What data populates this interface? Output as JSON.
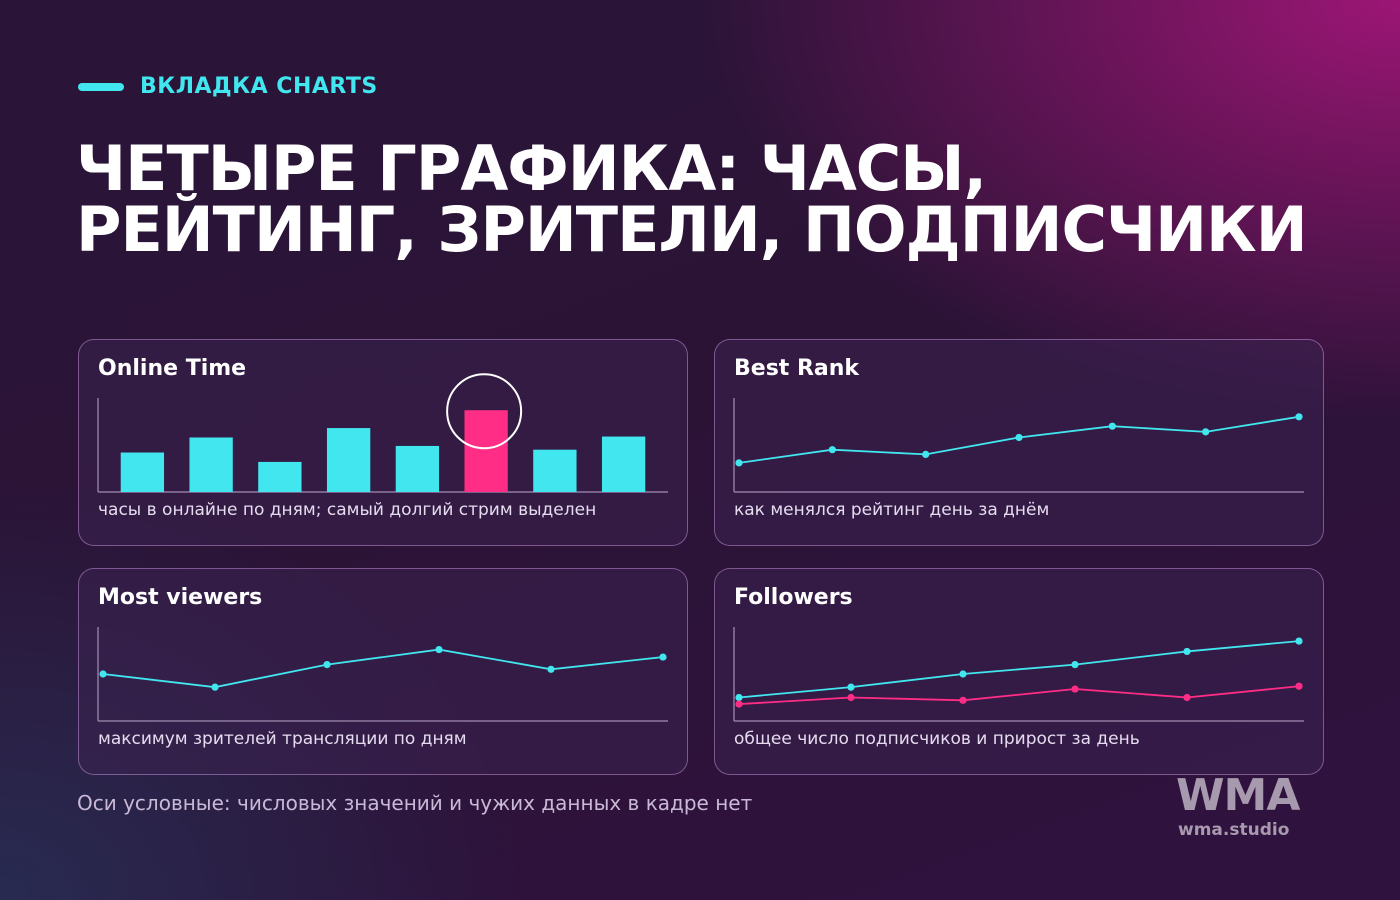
{
  "eyebrow": "ВКЛАДКА CHARTS",
  "headline": "Четыре графика: часы, рейтинг, зрители, подписчики",
  "footnote": "Оси условные: числовых значений и чужих данных в кадре нет",
  "brand": {
    "logo": "WMA",
    "url": "wma.studio"
  },
  "colors": {
    "accent": "#41e6ee",
    "highlight": "#ff2d86",
    "card_border": "#be8cd2"
  },
  "charts": [
    {
      "title": "Online Time",
      "caption": "часы в онлайне по дням; самый долгий стрим выделен"
    },
    {
      "title": "Best Rank",
      "caption": "как менялся рейтинг день за днём"
    },
    {
      "title": "Most viewers",
      "caption": "максимум зрителей трансляции по дням"
    },
    {
      "title": "Followers",
      "caption": "общее число подписчиков и прирост за день"
    }
  ],
  "chart_data": [
    {
      "type": "bar",
      "title": "Online Time",
      "values": [
        42,
        58,
        32,
        68,
        49,
        87,
        45,
        59
      ],
      "highlight_index": 5,
      "highlight_marker": "circle",
      "ylim": [
        0,
        100
      ],
      "colors": [
        "#41e6ee",
        "#ff2d86"
      ]
    },
    {
      "type": "line",
      "title": "Best Rank",
      "values": [
        31,
        45,
        40,
        58,
        70,
        64,
        80
      ],
      "ylim": [
        0,
        100
      ],
      "color": "#41e6ee"
    },
    {
      "type": "line",
      "title": "Most viewers",
      "values": [
        50,
        36,
        60,
        76,
        55,
        68
      ],
      "ylim": [
        0,
        100
      ],
      "color": "#41e6ee"
    },
    {
      "type": "line",
      "title": "Followers",
      "series": [
        {
          "values": [
            25,
            36,
            50,
            60,
            74,
            85
          ],
          "color": "#41e6ee"
        },
        {
          "values": [
            18,
            25,
            22,
            34,
            25,
            37
          ],
          "color": "#ff2d86"
        }
      ],
      "ylim": [
        0,
        100
      ]
    }
  ]
}
